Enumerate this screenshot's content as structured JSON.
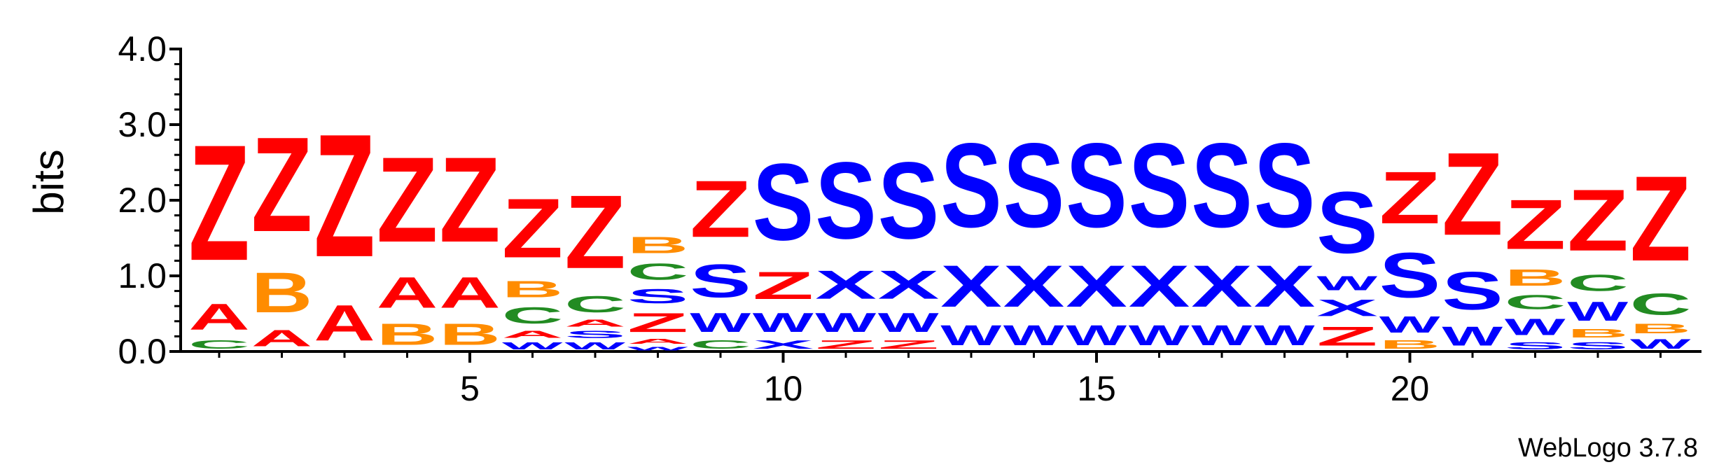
{
  "chart_data": {
    "type": "sequence-logo",
    "ylabel": "bits",
    "ylim": [
      0,
      4.0
    ],
    "y_ticks": [
      "0.0",
      "1.0",
      "2.0",
      "3.0",
      "4.0"
    ],
    "x_ticks": [
      "5",
      "10",
      "15",
      "20"
    ],
    "x_tick_positions": [
      5,
      10,
      15,
      20
    ],
    "num_positions": 24,
    "credit": "WebLogo 3.7.8",
    "colors": {
      "Z": "#ff0000",
      "A": "#ff0000",
      "B": "#ff8c00",
      "C": "#228b22",
      "S": "#0000ff",
      "W": "#0000ff",
      "X": "#0000ff"
    },
    "positions": [
      {
        "pos": 1,
        "stack": [
          [
            "C",
            0.18
          ],
          [
            "A",
            0.55
          ],
          [
            "Z",
            2.45
          ]
        ]
      },
      {
        "pos": 2,
        "stack": [
          [
            "A",
            0.35
          ],
          [
            "B",
            0.85
          ],
          [
            "Z",
            2.0
          ]
        ]
      },
      {
        "pos": 3,
        "stack": [
          [
            "A",
            0.75
          ],
          [
            "Z",
            2.6
          ]
        ]
      },
      {
        "pos": 4,
        "stack": [
          [
            "B",
            0.45
          ],
          [
            "A",
            0.65
          ],
          [
            "Z",
            1.8
          ]
        ]
      },
      {
        "pos": 5,
        "stack": [
          [
            "B",
            0.45
          ],
          [
            "A",
            0.65
          ],
          [
            "Z",
            1.8
          ]
        ]
      },
      {
        "pos": 6,
        "stack": [
          [
            "W",
            0.15
          ],
          [
            "A",
            0.15
          ],
          [
            "C",
            0.35
          ],
          [
            "B",
            0.35
          ],
          [
            "Z",
            1.25
          ]
        ]
      },
      {
        "pos": 7,
        "stack": [
          [
            "W",
            0.15
          ],
          [
            "S",
            0.15
          ],
          [
            "A",
            0.15
          ],
          [
            "C",
            0.35
          ],
          [
            "Z",
            1.55
          ]
        ]
      },
      {
        "pos": 8,
        "stack": [
          [
            "W",
            0.08
          ],
          [
            "A",
            0.1
          ],
          [
            "Z",
            0.4
          ],
          [
            "S",
            0.3
          ],
          [
            "C",
            0.35
          ],
          [
            "B",
            0.35
          ]
        ]
      },
      {
        "pos": 9,
        "stack": [
          [
            "C",
            0.18
          ],
          [
            "W",
            0.4
          ],
          [
            "S",
            0.7
          ],
          [
            "Z",
            1.2
          ]
        ]
      },
      {
        "pos": 10,
        "stack": [
          [
            "X",
            0.18
          ],
          [
            "W",
            0.4
          ],
          [
            "Z",
            0.58
          ],
          [
            "S",
            1.62
          ]
        ]
      },
      {
        "pos": 11,
        "stack": [
          [
            "Z",
            0.18
          ],
          [
            "W",
            0.4
          ],
          [
            "X",
            0.6
          ],
          [
            "S",
            1.62
          ]
        ]
      },
      {
        "pos": 12,
        "stack": [
          [
            "Z",
            0.18
          ],
          [
            "W",
            0.4
          ],
          [
            "X",
            0.6
          ],
          [
            "S",
            1.62
          ]
        ]
      },
      {
        "pos": 13,
        "stack": [
          [
            "W",
            0.42
          ],
          [
            "X",
            0.88
          ],
          [
            "S",
            1.78
          ]
        ]
      },
      {
        "pos": 14,
        "stack": [
          [
            "W",
            0.42
          ],
          [
            "X",
            0.88
          ],
          [
            "S",
            1.78
          ]
        ]
      },
      {
        "pos": 15,
        "stack": [
          [
            "W",
            0.42
          ],
          [
            "X",
            0.88
          ],
          [
            "S",
            1.78
          ]
        ]
      },
      {
        "pos": 16,
        "stack": [
          [
            "W",
            0.42
          ],
          [
            "X",
            0.88
          ],
          [
            "S",
            1.78
          ]
        ]
      },
      {
        "pos": 17,
        "stack": [
          [
            "W",
            0.42
          ],
          [
            "X",
            0.88
          ],
          [
            "S",
            1.78
          ]
        ]
      },
      {
        "pos": 18,
        "stack": [
          [
            "W",
            0.42
          ],
          [
            "X",
            0.88
          ],
          [
            "S",
            1.78
          ]
        ]
      },
      {
        "pos": 19,
        "stack": [
          [
            "Z",
            0.4
          ],
          [
            "X",
            0.35
          ],
          [
            "W",
            0.3
          ],
          [
            "S",
            1.3
          ]
        ]
      },
      {
        "pos": 20,
        "stack": [
          [
            "B",
            0.18
          ],
          [
            "W",
            0.35
          ],
          [
            "S",
            0.95
          ],
          [
            "Z",
            1.1
          ]
        ]
      },
      {
        "pos": 21,
        "stack": [
          [
            "W",
            0.4
          ],
          [
            "S",
            0.8
          ],
          [
            "Z",
            1.75
          ]
        ]
      },
      {
        "pos": 22,
        "stack": [
          [
            "S",
            0.15
          ],
          [
            "W",
            0.35
          ],
          [
            "C",
            0.3
          ],
          [
            "B",
            0.35
          ],
          [
            "Z",
            1.05
          ]
        ]
      },
      {
        "pos": 23,
        "stack": [
          [
            "S",
            0.15
          ],
          [
            "B",
            0.18
          ],
          [
            "W",
            0.4
          ],
          [
            "C",
            0.35
          ],
          [
            "Z",
            1.3
          ]
        ]
      },
      {
        "pos": 24,
        "stack": [
          [
            "W",
            0.2
          ],
          [
            "B",
            0.2
          ],
          [
            "C",
            0.45
          ],
          [
            "Z",
            1.8
          ]
        ]
      }
    ]
  }
}
